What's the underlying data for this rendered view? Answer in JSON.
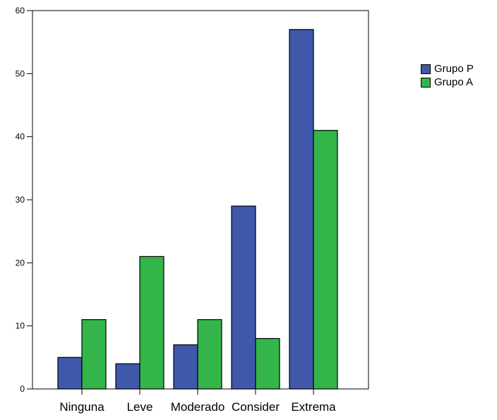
{
  "chart_data": {
    "type": "bar",
    "title": "",
    "xlabel": "",
    "ylabel": "",
    "categories": [
      "Ninguna",
      "Leve",
      "Moderado",
      "Consider",
      "Extrema"
    ],
    "series": [
      {
        "name": "Grupo P",
        "color": "#3f58aa",
        "values": [
          5,
          4,
          7,
          29,
          57
        ]
      },
      {
        "name": "Grupo A",
        "color": "#33b54a",
        "values": [
          11,
          21,
          11,
          8,
          41
        ]
      }
    ],
    "ylim": [
      0,
      60
    ],
    "yticks": [
      0,
      10,
      20,
      30,
      40,
      50,
      60
    ],
    "grid": false,
    "legend_position": "right"
  }
}
